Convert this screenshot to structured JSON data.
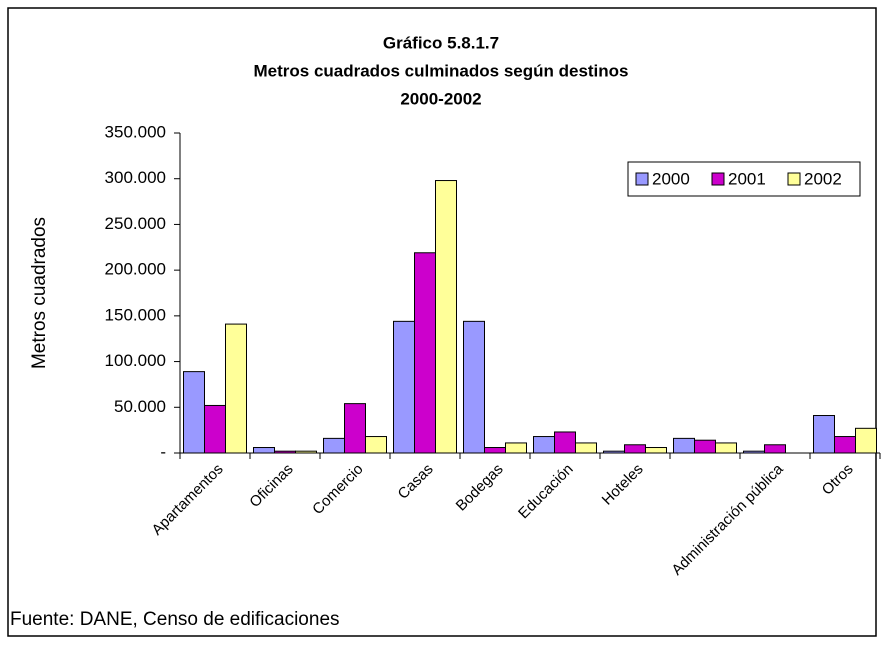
{
  "chart_data": {
    "type": "bar",
    "title": "Gráfico 5.8.1.7",
    "subtitle": "Metros cuadrados culminados según destinos",
    "period": "2000-2002",
    "y_label": "Metros cuadrados",
    "source": "Fuente: DANE, Censo de edificaciones",
    "categories": [
      "Apartamentos",
      "Oficinas",
      "Comercio",
      "Casas",
      "Bodegas",
      "Educación",
      "Hoteles",
      null,
      "Administración pública",
      "Otros"
    ],
    "series": [
      {
        "name": "2000",
        "color": "#9999ff",
        "values": [
          89000,
          6000,
          16000,
          144000,
          144000,
          18000,
          2000,
          16000,
          2000,
          41000
        ]
      },
      {
        "name": "2001",
        "color": "#cc00cc",
        "values": [
          52000,
          2000,
          54000,
          219000,
          6000,
          23000,
          9000,
          14000,
          9000,
          18000
        ]
      },
      {
        "name": "2002",
        "color": "#ffff99",
        "values": [
          141000,
          2000,
          18000,
          298000,
          11000,
          11000,
          6000,
          11000,
          0,
          27000
        ]
      }
    ],
    "ylim": [
      0,
      350000
    ],
    "yticks": [
      {
        "value": 0,
        "label": "-"
      },
      {
        "value": 50000,
        "label": "50.000"
      },
      {
        "value": 100000,
        "label": "100.000"
      },
      {
        "value": 150000,
        "label": "150.000"
      },
      {
        "value": 200000,
        "label": "200.000"
      },
      {
        "value": 250000,
        "label": "250.000"
      },
      {
        "value": 300000,
        "label": "300.000"
      },
      {
        "value": 350000,
        "label": "350.000"
      }
    ],
    "legend": "top-right",
    "grid": false
  }
}
